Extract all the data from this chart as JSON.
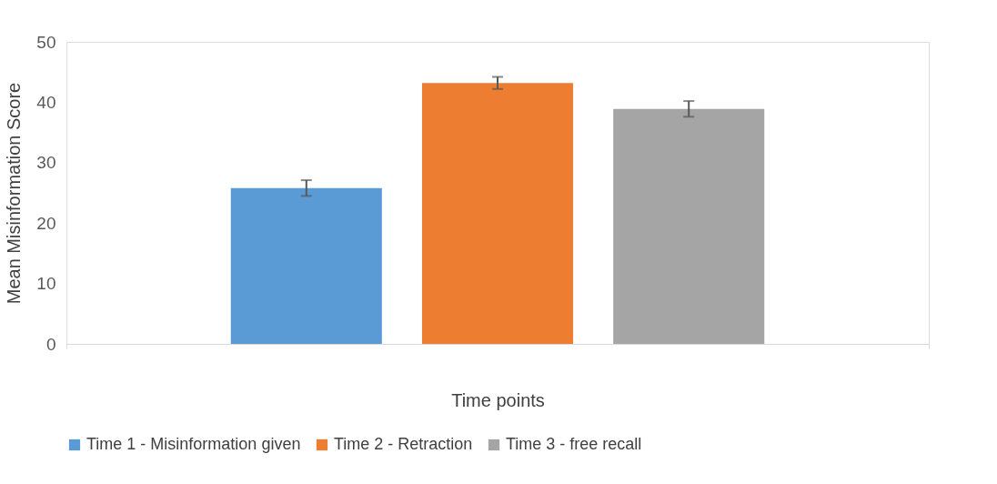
{
  "chart_data": {
    "type": "bar",
    "xlabel": "Time points",
    "ylabel": "Mean Misinformation Score",
    "categories": [
      null
    ],
    "series": [
      {
        "name": "Time 1 - Misinformation given",
        "color": "#5b9bd5",
        "values": [
          25.8
        ],
        "errors": [
          1.3
        ]
      },
      {
        "name": "Time 2 - Retraction",
        "color": "#ed7d31",
        "values": [
          43.2
        ],
        "errors": [
          1.0
        ]
      },
      {
        "name": "Time 3 - free recall",
        "color": "#a5a5a5",
        "values": [
          38.9
        ],
        "errors": [
          1.3
        ]
      }
    ],
    "ylim": [
      0,
      50
    ],
    "yticks": [
      0,
      10,
      20,
      30,
      40,
      50
    ],
    "grid": false,
    "legend": "bottom"
  }
}
